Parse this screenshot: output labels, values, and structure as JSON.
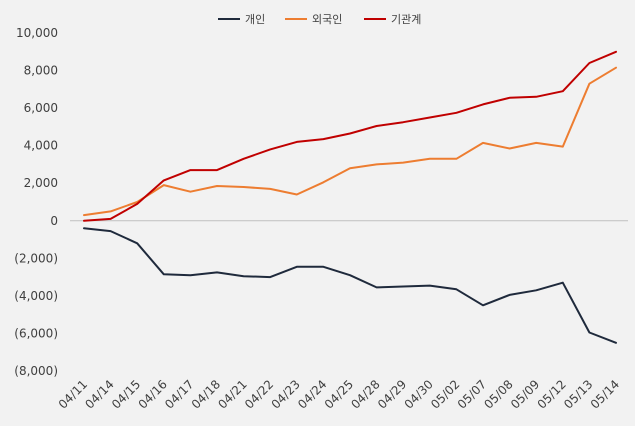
{
  "chart_data": {
    "type": "line",
    "title": "",
    "xlabel": "",
    "ylabel": "",
    "ylim": [
      -8000,
      10000
    ],
    "y_ticks": [
      10000,
      8000,
      6000,
      4000,
      2000,
      0,
      -2000,
      -4000,
      -6000,
      -8000
    ],
    "y_tick_labels": [
      "10,000",
      "8,000",
      "6,000",
      "4,000",
      "2,000",
      "0",
      "(2,000)",
      "(4,000)",
      "(6,000)",
      "(8,000)"
    ],
    "negative_label_color": "#c00000",
    "positive_label_color": "#404040",
    "grid": false,
    "legend_position": "top-center",
    "categories": [
      "04/11",
      "04/14",
      "04/15",
      "04/16",
      "04/17",
      "04/18",
      "04/21",
      "04/22",
      "04/23",
      "04/24",
      "04/25",
      "04/28",
      "04/29",
      "04/30",
      "05/02",
      "05/07",
      "05/08",
      "05/09",
      "05/12",
      "05/13",
      "05/14"
    ],
    "series": [
      {
        "name": "개인",
        "color": "#1f2a3c",
        "values": [
          -400,
          -550,
          -1200,
          -2850,
          -2900,
          -2750,
          -2950,
          -3000,
          -2450,
          -2450,
          -2900,
          -3550,
          -3500,
          -3450,
          -3650,
          -4500,
          -3950,
          -3700,
          -3300,
          -5950,
          -6500
        ]
      },
      {
        "name": "외국인",
        "color": "#ed7d31",
        "values": [
          300,
          500,
          1000,
          1900,
          1550,
          1850,
          1800,
          1700,
          1400,
          2050,
          2800,
          3000,
          3100,
          3300,
          3300,
          4150,
          3850,
          4150,
          3950,
          7300,
          8150
        ]
      },
      {
        "name": "기관계",
        "color": "#c00000",
        "values": [
          0,
          100,
          900,
          2150,
          2700,
          2700,
          3300,
          3800,
          4200,
          4350,
          4650,
          5050,
          5250,
          5500,
          5750,
          6200,
          6550,
          6600,
          6900,
          8400,
          9000
        ]
      }
    ]
  }
}
